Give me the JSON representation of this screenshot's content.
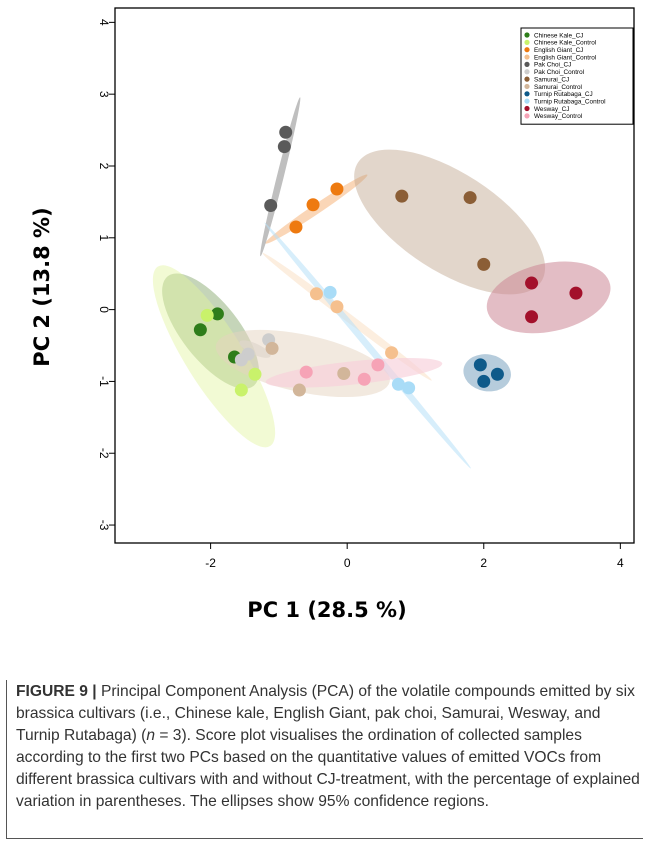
{
  "chart_data": {
    "type": "scatter",
    "xlabel": "PC 1 (28.5 %)",
    "ylabel": "PC 2 (13.8 %)",
    "xlim": [
      -3.4,
      4.2
    ],
    "ylim": [
      -3.25,
      4.2
    ],
    "xticks": [
      -2,
      0,
      2,
      4
    ],
    "yticks": [
      -3,
      -2,
      -1,
      0,
      1,
      2,
      3,
      4
    ],
    "ytick_rotation": "labels rotated vertical",
    "grid": false,
    "legend_position": "top-right",
    "series": [
      {
        "name": "Chinese Kale_CJ",
        "color": "#2e7d1a",
        "points": [
          [
            -1.9,
            -0.06
          ],
          [
            -2.15,
            -0.28
          ],
          [
            -1.65,
            -0.66
          ]
        ],
        "ellipse": {
          "cx": -2.0,
          "cy": -0.3,
          "rx": 1.02,
          "ry": 0.42,
          "angle_deg": -52,
          "fill": "#4a7c25",
          "opacity": 0.32
        }
      },
      {
        "name": "Chinese Kale_Control",
        "color": "#c9f26b",
        "points": [
          [
            -2.05,
            -0.08
          ],
          [
            -1.35,
            -0.9
          ],
          [
            -1.55,
            -1.12
          ]
        ],
        "ellipse": {
          "cx": -1.95,
          "cy": -0.65,
          "rx": 1.55,
          "ry": 0.42,
          "angle_deg": -58,
          "fill": "#e2f5a0",
          "opacity": 0.45
        }
      },
      {
        "name": "English Giant_CJ",
        "color": "#ee7a10",
        "points": [
          [
            -0.15,
            1.68
          ],
          [
            -0.5,
            1.46
          ],
          [
            -0.75,
            1.15
          ]
        ],
        "ellipse": {
          "cx": -0.45,
          "cy": 1.4,
          "rx": 0.9,
          "ry": 0.07,
          "angle_deg": 34,
          "fill": "#f4a460",
          "opacity": 0.45
        }
      },
      {
        "name": "English Giant_Control",
        "color": "#f5c08e",
        "points": [
          [
            -0.45,
            0.22
          ],
          [
            -0.15,
            0.04
          ],
          [
            0.65,
            -0.6
          ]
        ],
        "ellipse": {
          "cx": 0.0,
          "cy": -0.1,
          "rx": 1.55,
          "ry": 0.06,
          "angle_deg": -37,
          "fill": "#fae0c4",
          "opacity": 0.55
        }
      },
      {
        "name": "Pak Choi_CJ",
        "color": "#5a5a5a",
        "points": [
          [
            -0.9,
            2.47
          ],
          [
            -0.92,
            2.27
          ],
          [
            -1.12,
            1.45
          ]
        ],
        "ellipse": {
          "cx": -0.98,
          "cy": 1.85,
          "rx": 1.2,
          "ry": 0.05,
          "angle_deg": 76,
          "fill": "#8a8a8a",
          "opacity": 0.55
        }
      },
      {
        "name": "Pak Choi_Control",
        "color": "#cdcdcd",
        "points": [
          [
            -1.15,
            -0.42
          ],
          [
            -1.45,
            -0.62
          ],
          [
            -1.55,
            -0.7
          ]
        ],
        "ellipse": {
          "cx": -1.35,
          "cy": -0.55,
          "rx": 0.25,
          "ry": 0.08,
          "angle_deg": -25,
          "fill": "#d8d8d8",
          "opacity": 0.7
        }
      },
      {
        "name": "Samurai_CJ",
        "color": "#8b5e36",
        "points": [
          [
            0.8,
            1.58
          ],
          [
            1.8,
            1.56
          ],
          [
            2.0,
            0.63
          ]
        ],
        "ellipse": {
          "cx": 1.5,
          "cy": 1.22,
          "rx": 1.6,
          "ry": 0.72,
          "angle_deg": -33,
          "fill": "#bfa58c",
          "opacity": 0.45
        }
      },
      {
        "name": "Samurai_Control",
        "color": "#d2b69a",
        "points": [
          [
            -1.1,
            -0.54
          ],
          [
            -0.7,
            -1.12
          ],
          [
            -0.05,
            -0.89
          ]
        ],
        "ellipse": {
          "cx": -0.65,
          "cy": -0.75,
          "rx": 1.3,
          "ry": 0.42,
          "angle_deg": -12,
          "fill": "#e6d3c0",
          "opacity": 0.5
        }
      },
      {
        "name": "Turnip Rutabaga_CJ",
        "color": "#0e5a8a",
        "points": [
          [
            1.95,
            -0.77
          ],
          [
            2.2,
            -0.9
          ],
          [
            2.0,
            -1.0
          ]
        ],
        "ellipse": {
          "cx": 2.05,
          "cy": -0.88,
          "rx": 0.35,
          "ry": 0.27,
          "angle_deg": -10,
          "fill": "#7aa2bf",
          "opacity": 0.55
        }
      },
      {
        "name": "Turnip Rutabaga_Control",
        "color": "#a9dcf7",
        "points": [
          [
            -0.25,
            0.24
          ],
          [
            0.75,
            -1.04
          ],
          [
            0.9,
            -1.09
          ]
        ],
        "ellipse": {
          "cx": 0.3,
          "cy": -0.5,
          "rx": 2.35,
          "ry": 0.05,
          "angle_deg": -50,
          "fill": "#b6e0f8",
          "opacity": 0.55
        }
      },
      {
        "name": "Wesway_CJ",
        "color": "#a3102b",
        "points": [
          [
            2.7,
            0.37
          ],
          [
            3.35,
            0.23
          ],
          [
            2.7,
            -0.1
          ]
        ],
        "ellipse": {
          "cx": 2.95,
          "cy": 0.17,
          "rx": 0.92,
          "ry": 0.5,
          "angle_deg": 12,
          "fill": "#cc8796",
          "opacity": 0.55
        }
      },
      {
        "name": "Wesway_Control",
        "color": "#f6a3b6",
        "points": [
          [
            0.45,
            -0.77
          ],
          [
            0.25,
            -0.97
          ],
          [
            -0.6,
            -0.87
          ]
        ],
        "ellipse": {
          "cx": 0.1,
          "cy": -0.88,
          "rx": 1.3,
          "ry": 0.17,
          "angle_deg": 6,
          "fill": "#f8d0da",
          "opacity": 0.65
        }
      }
    ]
  },
  "caption": {
    "label": "FIGURE 9 |",
    "text_before_n": " Principal Component Analysis (PCA) of the volatile compounds emitted by six brassica cultivars (i.e., Chinese kale, English Giant, pak choi, Samurai, Wesway, and Turnip Rutabaga) (",
    "n_symbol": "n",
    "text_after_n": " = 3). Score plot visualises the ordination of collected samples according to the first two PCs based on the quantitative values of emitted VOCs from different brassica cultivars with and without CJ-treatment, with the percentage of explained variation in parentheses. The ellipses show 95% confidence regions."
  }
}
